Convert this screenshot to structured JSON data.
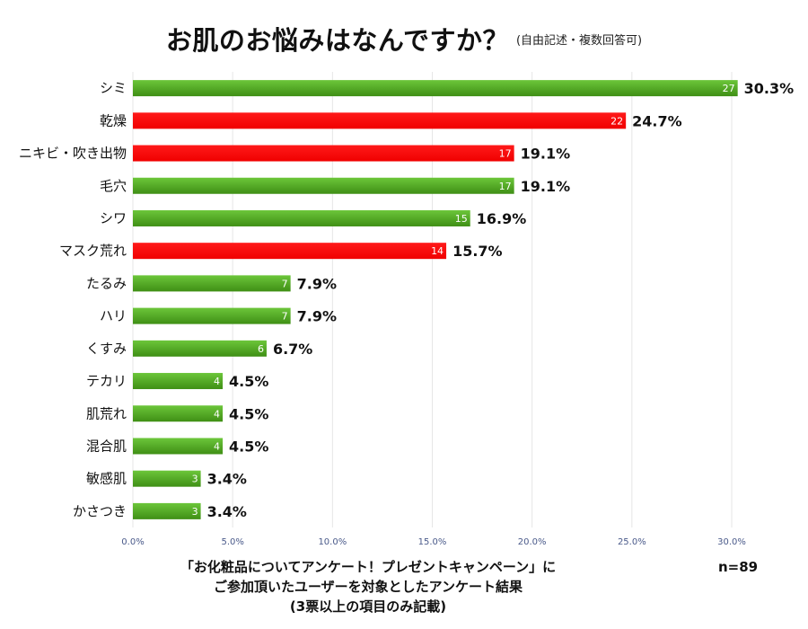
{
  "header": {
    "title": "お肌のお悩みはなんですか？",
    "subtitle": "(自由記述・複数回答可)"
  },
  "footer": {
    "line1": "「お化粧品についてアンケート！プレゼントキャンペーン」に",
    "line2": "ご参加頂いたユーザーを対象としたアンケート結果",
    "line3": "(3票以上の項目のみ記載)",
    "n_label": "n=89"
  },
  "colors": {
    "green": "#4a9e1c",
    "red": "#ff0000",
    "grid": "#e6e6e6",
    "tick": "#4a5a8a"
  },
  "chart_data": {
    "type": "bar",
    "orientation": "horizontal",
    "categories": [
      "シミ",
      "乾燥",
      "ニキビ・吹き出物",
      "毛穴",
      "シワ",
      "マスク荒れ",
      "たるみ",
      "ハリ",
      "くすみ",
      "テカリ",
      "肌荒れ",
      "混合肌",
      "敏感肌",
      "かさつき"
    ],
    "counts": [
      27,
      22,
      17,
      17,
      15,
      14,
      7,
      7,
      6,
      4,
      4,
      4,
      3,
      3
    ],
    "values": [
      30.3,
      24.7,
      19.1,
      19.1,
      16.9,
      15.7,
      7.9,
      7.9,
      6.7,
      4.5,
      4.5,
      4.5,
      3.4,
      3.4
    ],
    "value_labels": [
      "30.3%",
      "24.7%",
      "19.1%",
      "19.1%",
      "16.9%",
      "15.7%",
      "7.9%",
      "7.9%",
      "6.7%",
      "4.5%",
      "4.5%",
      "4.5%",
      "3.4%",
      "3.4%"
    ],
    "bar_colors": [
      "green",
      "red",
      "red",
      "green",
      "green",
      "red",
      "green",
      "green",
      "green",
      "green",
      "green",
      "green",
      "green",
      "green"
    ],
    "xlim": [
      0,
      30
    ],
    "xticks": [
      "0.0%",
      "5.0%",
      "10.0%",
      "15.0%",
      "20.0%",
      "25.0%",
      "30.0%"
    ],
    "grid": true
  }
}
